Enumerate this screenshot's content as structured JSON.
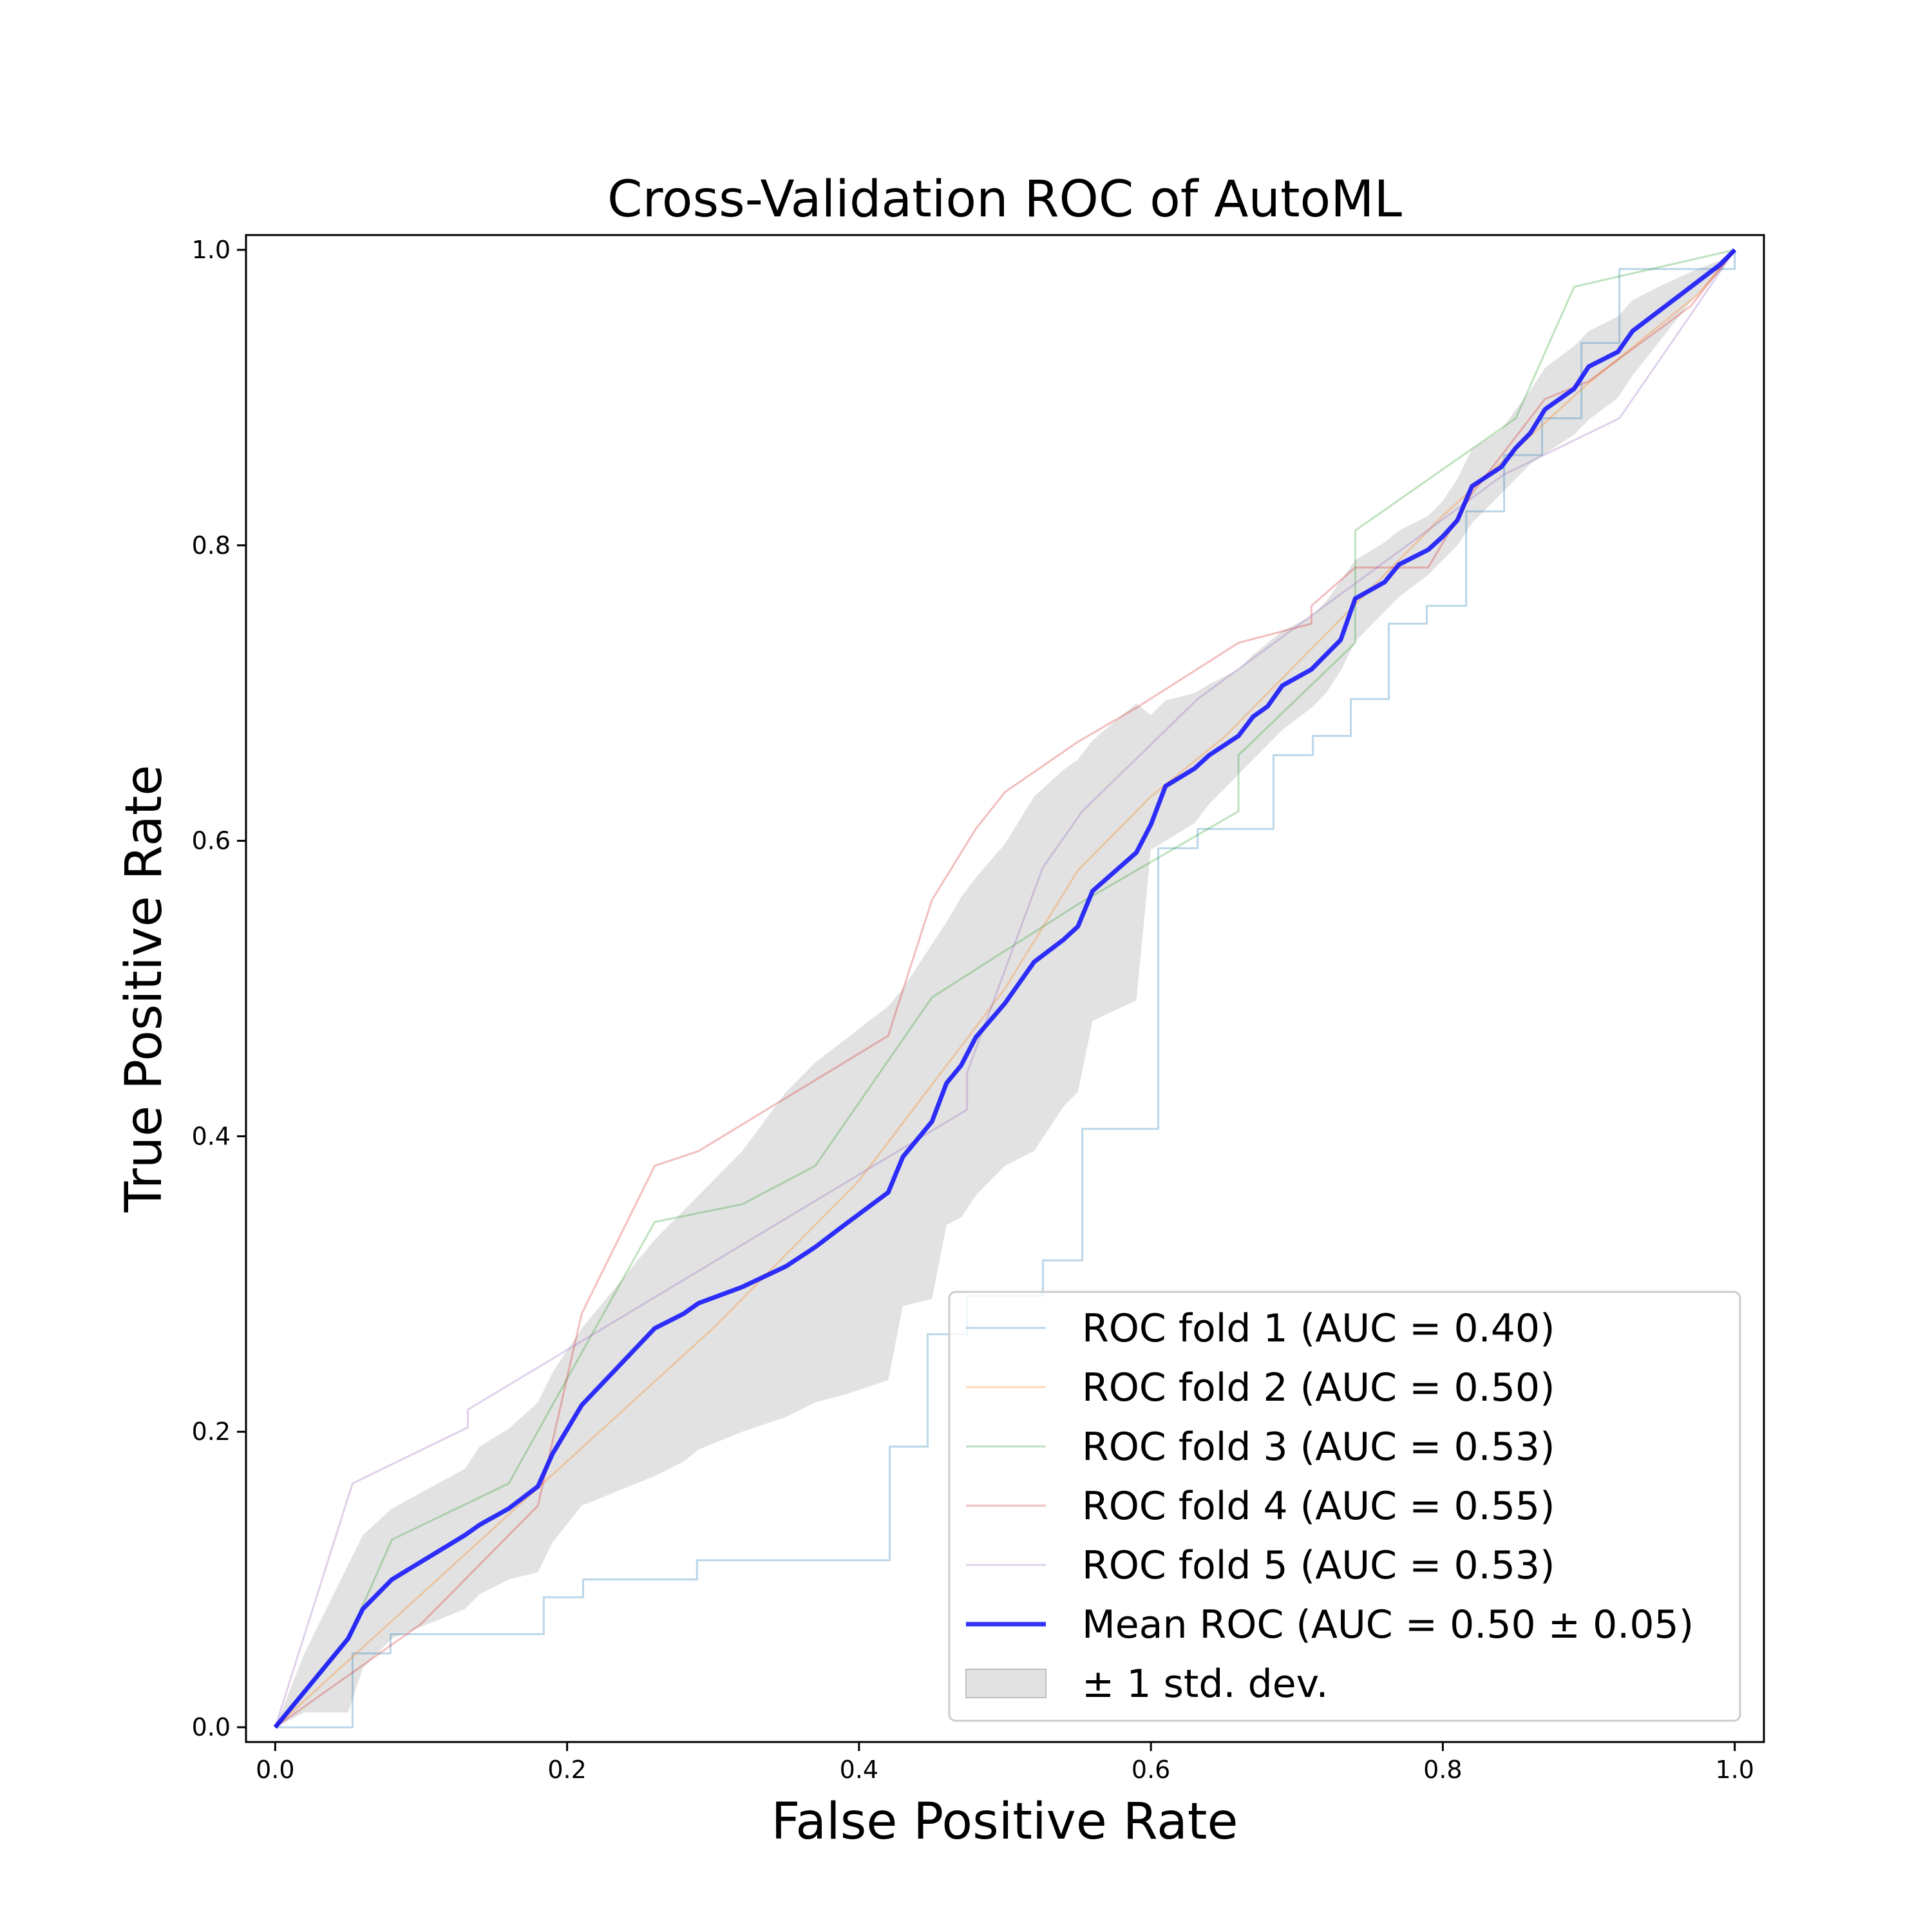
{
  "chart_data": {
    "type": "line",
    "title": "Cross-Validation ROC of AutoML",
    "xlabel": "False Positive Rate",
    "ylabel": "True Positive Rate",
    "xlim": [
      -0.02,
      1.02
    ],
    "ylim": [
      -0.01,
      1.01
    ],
    "xticks": [
      "0.0",
      "0.2",
      "0.4",
      "0.6",
      "0.8",
      "1.0"
    ],
    "yticks": [
      "0.0",
      "0.2",
      "0.4",
      "0.6",
      "0.8",
      "1.0"
    ],
    "grid": false,
    "legend_position": "lower-right",
    "series": [
      {
        "name": "ROC fold 1 (AUC = 0.40)",
        "color": "#1f77b4",
        "alpha": 0.3,
        "width": "thin",
        "x": [
          0.0,
          0.053,
          0.053,
          0.079,
          0.079,
          0.184,
          0.184,
          0.211,
          0.211,
          0.289,
          0.289,
          0.421,
          0.421,
          0.447,
          0.447,
          0.474,
          0.474,
          0.526,
          0.526,
          0.553,
          0.553,
          0.605,
          0.605,
          0.632,
          0.632,
          0.684,
          0.684,
          0.711,
          0.711,
          0.737,
          0.737,
          0.763,
          0.763,
          0.789,
          0.789,
          0.816,
          0.816,
          0.842,
          0.842,
          0.868,
          0.868,
          0.895,
          0.895,
          0.921,
          0.921,
          1.0,
          1.0
        ],
        "y": [
          0.0,
          0.0,
          0.05,
          0.05,
          0.063,
          0.063,
          0.088,
          0.088,
          0.1,
          0.1,
          0.113,
          0.113,
          0.19,
          0.19,
          0.266,
          0.266,
          0.292,
          0.292,
          0.316,
          0.316,
          0.405,
          0.405,
          0.595,
          0.595,
          0.608,
          0.608,
          0.658,
          0.658,
          0.671,
          0.671,
          0.696,
          0.696,
          0.747,
          0.747,
          0.759,
          0.759,
          0.823,
          0.823,
          0.861,
          0.861,
          0.886,
          0.886,
          0.937,
          0.937,
          0.987,
          0.987,
          1.0
        ]
      },
      {
        "name": "ROC fold 2 (AUC = 0.50)",
        "color": "#ff7f0e",
        "alpha": 0.3,
        "width": "thin",
        "x": [
          0.0,
          0.1,
          0.2,
          0.3,
          0.4,
          0.5,
          0.55,
          0.6,
          0.65,
          0.7,
          0.8,
          0.9,
          0.975,
          1.0
        ],
        "y": [
          0.0,
          0.09,
          0.18,
          0.27,
          0.37,
          0.5,
          0.58,
          0.63,
          0.67,
          0.72,
          0.82,
          0.91,
          0.97,
          1.0
        ]
      },
      {
        "name": "ROC fold 3 (AUC = 0.53)",
        "color": "#2ca02c",
        "alpha": 0.3,
        "width": "thin",
        "x": [
          0.0,
          0.05,
          0.08,
          0.16,
          0.26,
          0.32,
          0.37,
          0.45,
          0.55,
          0.66,
          0.66,
          0.74,
          0.74,
          0.85,
          0.89,
          1.0
        ],
        "y": [
          0.0,
          0.06,
          0.127,
          0.165,
          0.342,
          0.354,
          0.38,
          0.494,
          0.557,
          0.62,
          0.658,
          0.734,
          0.81,
          0.886,
          0.975,
          1.0
        ]
      },
      {
        "name": "ROC fold 4 (AUC = 0.55)",
        "color": "#d62728",
        "alpha": 0.3,
        "width": "thin",
        "x": [
          0.0,
          0.1,
          0.18,
          0.21,
          0.26,
          0.29,
          0.42,
          0.45,
          0.48,
          0.5,
          0.55,
          0.59,
          0.66,
          0.71,
          0.71,
          0.74,
          0.79,
          0.82,
          0.87,
          0.9,
          0.97,
          1.0
        ],
        "y": [
          0.0,
          0.07,
          0.15,
          0.28,
          0.38,
          0.39,
          0.468,
          0.56,
          0.608,
          0.633,
          0.667,
          0.69,
          0.734,
          0.747,
          0.759,
          0.785,
          0.785,
          0.835,
          0.899,
          0.911,
          0.962,
          1.0
        ]
      },
      {
        "name": "ROC fold 5 (AUC = 0.53)",
        "color": "#9467bd",
        "alpha": 0.3,
        "width": "thin",
        "x": [
          0.0,
          0.053,
          0.132,
          0.132,
          0.474,
          0.474,
          0.526,
          0.553,
          0.632,
          0.737,
          0.842,
          0.921,
          0.974,
          1.0
        ],
        "y": [
          0.0,
          0.165,
          0.203,
          0.215,
          0.418,
          0.443,
          0.582,
          0.62,
          0.696,
          0.772,
          0.848,
          0.886,
          0.962,
          1.0
        ]
      },
      {
        "name": "Mean ROC (AUC = 0.50 ± 0.05)",
        "color": "#0000ff",
        "alpha": 0.8,
        "width": "thick",
        "x": [
          0.0,
          0.05,
          0.06,
          0.08,
          0.13,
          0.14,
          0.16,
          0.18,
          0.19,
          0.21,
          0.26,
          0.28,
          0.29,
          0.32,
          0.35,
          0.37,
          0.39,
          0.42,
          0.43,
          0.45,
          0.46,
          0.47,
          0.48,
          0.5,
          0.52,
          0.54,
          0.55,
          0.56,
          0.59,
          0.6,
          0.61,
          0.63,
          0.64,
          0.66,
          0.67,
          0.68,
          0.69,
          0.71,
          0.72,
          0.73,
          0.74,
          0.76,
          0.77,
          0.79,
          0.8,
          0.81,
          0.82,
          0.84,
          0.85,
          0.86,
          0.87,
          0.89,
          0.9,
          0.92,
          0.93,
          0.95,
          0.97,
          0.99,
          1.0
        ],
        "y": [
          0.0,
          0.06,
          0.08,
          0.1,
          0.13,
          0.137,
          0.148,
          0.163,
          0.185,
          0.218,
          0.27,
          0.28,
          0.287,
          0.298,
          0.312,
          0.325,
          0.34,
          0.362,
          0.386,
          0.41,
          0.436,
          0.448,
          0.467,
          0.49,
          0.518,
          0.533,
          0.542,
          0.566,
          0.592,
          0.611,
          0.637,
          0.649,
          0.658,
          0.671,
          0.684,
          0.691,
          0.705,
          0.716,
          0.726,
          0.736,
          0.764,
          0.775,
          0.787,
          0.797,
          0.806,
          0.817,
          0.84,
          0.853,
          0.866,
          0.876,
          0.892,
          0.906,
          0.921,
          0.931,
          0.945,
          0.96,
          0.975,
          0.99,
          1.0
        ]
      }
    ],
    "band": {
      "name": "± 1 std. dev.",
      "color": "#bfbfbf",
      "alpha": 0.45,
      "x": [
        0.0,
        0.02,
        0.05,
        0.06,
        0.08,
        0.13,
        0.14,
        0.16,
        0.18,
        0.19,
        0.21,
        0.26,
        0.28,
        0.29,
        0.32,
        0.35,
        0.37,
        0.39,
        0.42,
        0.43,
        0.45,
        0.46,
        0.47,
        0.48,
        0.5,
        0.52,
        0.54,
        0.55,
        0.56,
        0.59,
        0.6,
        0.61,
        0.63,
        0.64,
        0.66,
        0.67,
        0.68,
        0.69,
        0.71,
        0.72,
        0.73,
        0.74,
        0.76,
        0.77,
        0.79,
        0.8,
        0.81,
        0.82,
        0.84,
        0.85,
        0.86,
        0.87,
        0.89,
        0.9,
        0.92,
        0.93,
        0.95,
        0.97,
        0.99,
        1.0
      ],
      "upper": [
        0.0,
        0.05,
        0.11,
        0.13,
        0.148,
        0.175,
        0.19,
        0.202,
        0.22,
        0.24,
        0.27,
        0.33,
        0.35,
        0.36,
        0.39,
        0.43,
        0.45,
        0.465,
        0.488,
        0.5,
        0.53,
        0.545,
        0.562,
        0.575,
        0.598,
        0.63,
        0.648,
        0.655,
        0.668,
        0.693,
        0.685,
        0.695,
        0.7,
        0.706,
        0.716,
        0.726,
        0.734,
        0.742,
        0.752,
        0.762,
        0.776,
        0.79,
        0.802,
        0.81,
        0.82,
        0.83,
        0.845,
        0.865,
        0.878,
        0.892,
        0.905,
        0.92,
        0.935,
        0.945,
        0.955,
        0.966,
        0.976,
        0.985,
        0.993,
        1.0
      ],
      "lower": [
        0.0,
        0.01,
        0.01,
        0.04,
        0.06,
        0.08,
        0.09,
        0.1,
        0.105,
        0.125,
        0.15,
        0.17,
        0.18,
        0.188,
        0.2,
        0.21,
        0.22,
        0.225,
        0.235,
        0.285,
        0.29,
        0.34,
        0.345,
        0.36,
        0.38,
        0.39,
        0.42,
        0.43,
        0.478,
        0.492,
        0.594,
        0.6,
        0.612,
        0.625,
        0.645,
        0.655,
        0.665,
        0.675,
        0.69,
        0.7,
        0.715,
        0.735,
        0.755,
        0.765,
        0.78,
        0.79,
        0.8,
        0.815,
        0.835,
        0.845,
        0.855,
        0.862,
        0.875,
        0.885,
        0.9,
        0.915,
        0.94,
        0.965,
        0.985,
        1.0
      ]
    },
    "legend": [
      {
        "label": "ROC fold 1 (AUC = 0.40)",
        "color": "#1f77b4",
        "kind": "line-thin"
      },
      {
        "label": "ROC fold 2 (AUC = 0.50)",
        "color": "#ff7f0e",
        "kind": "line-thin"
      },
      {
        "label": "ROC fold 3 (AUC = 0.53)",
        "color": "#2ca02c",
        "kind": "line-thin"
      },
      {
        "label": "ROC fold 4 (AUC = 0.55)",
        "color": "#d62728",
        "kind": "line-thin"
      },
      {
        "label": "ROC fold 5 (AUC = 0.53)",
        "color": "#9467bd",
        "kind": "line-thin"
      },
      {
        "label": "Mean ROC (AUC = 0.50 ± 0.05)",
        "color": "#0000ff",
        "kind": "line-thick"
      },
      {
        "label": "± 1 std. dev.",
        "color": "#bfbfbf",
        "kind": "patch"
      }
    ]
  }
}
